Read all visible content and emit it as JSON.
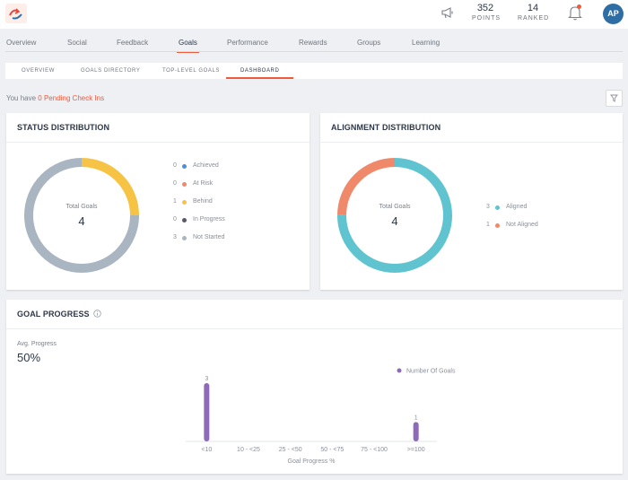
{
  "header": {
    "points": {
      "value": "352",
      "label": "POINTS"
    },
    "ranked": {
      "value": "14",
      "label": "RANKED"
    },
    "avatar_initials": "AP"
  },
  "nav": {
    "items": [
      {
        "label": "Overview"
      },
      {
        "label": "Social"
      },
      {
        "label": "Feedback"
      },
      {
        "label": "Goals",
        "active": true
      },
      {
        "label": "Performance"
      },
      {
        "label": "Rewards"
      },
      {
        "label": "Groups"
      },
      {
        "label": "Learning"
      }
    ]
  },
  "subtabs": {
    "items": [
      {
        "label": "OVERVIEW"
      },
      {
        "label": "GOALS DIRECTORY"
      },
      {
        "label": "TOP-LEVEL GOALS"
      },
      {
        "label": "DASHBOARD",
        "active": true
      }
    ]
  },
  "pending": {
    "prefix": "You have ",
    "link": "0 Pending Check Ins"
  },
  "status_card": {
    "title": "STATUS DISTRIBUTION",
    "center_label": "Total Goals",
    "center_value": "4",
    "legend": [
      {
        "count": "0",
        "label": "Achieved",
        "color": "#4a90d9"
      },
      {
        "count": "0",
        "label": "At Risk",
        "color": "#f0896a"
      },
      {
        "count": "1",
        "label": "Behind",
        "color": "#f6c344"
      },
      {
        "count": "0",
        "label": "In Progress",
        "color": "#555b66"
      },
      {
        "count": "3",
        "label": "Not Started",
        "color": "#aab5c2"
      }
    ]
  },
  "alignment_card": {
    "title": "ALIGNMENT DISTRIBUTION",
    "center_label": "Total Goals",
    "center_value": "4",
    "legend": [
      {
        "count": "3",
        "label": "Aligned",
        "color": "#5fc4cf"
      },
      {
        "count": "1",
        "label": "Not Aligned",
        "color": "#f0896a"
      }
    ]
  },
  "progress_card": {
    "title": "GOAL PROGRESS",
    "avg_label": "Avg. Progress",
    "avg_value": "50%"
  },
  "chart_data": {
    "type": "bar",
    "categories": [
      "<10",
      "10 - <25",
      "25 - <50",
      "50 - <75",
      "75 - <100",
      ">=100"
    ],
    "series": [
      {
        "name": "Number Of Goals",
        "values": [
          3,
          0,
          0,
          0,
          0,
          1
        ],
        "color": "#8e6bb8"
      }
    ],
    "xlabel": "Goal Progress  %",
    "ylim": [
      0,
      3
    ],
    "legend_position": "top-right",
    "grid": false
  }
}
